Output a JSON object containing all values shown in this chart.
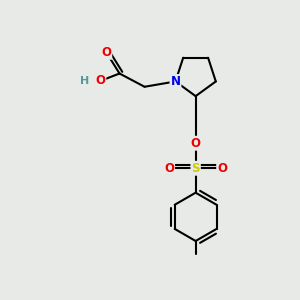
{
  "background_color": "#e8eae8",
  "atom_colors": {
    "C": "#000000",
    "N": "#0000ee",
    "O": "#ee0000",
    "S": "#cccc00",
    "H": "#559999"
  },
  "bond_color": "#000000",
  "bond_width": 1.5,
  "fig_size": [
    3.0,
    3.0
  ],
  "dpi": 100
}
